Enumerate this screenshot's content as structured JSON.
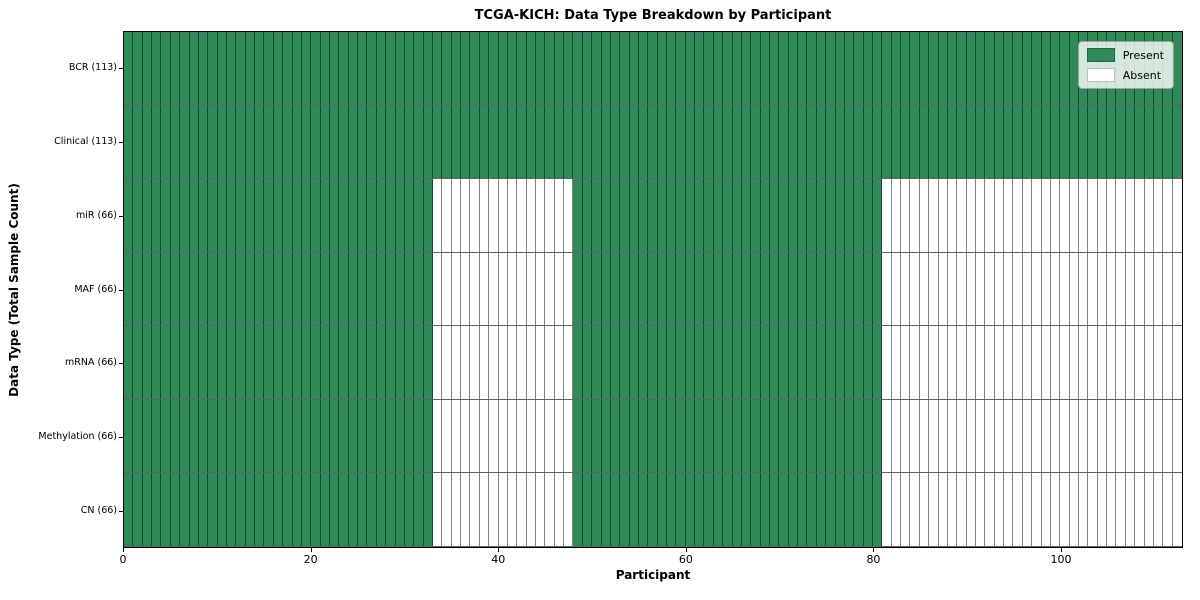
{
  "chart_data": {
    "type": "heatmap",
    "title": "TCGA-KICH: Data Type Breakdown by Participant",
    "xlabel": "Participant",
    "ylabel": "Data Type (Total Sample Count)",
    "n_participants": 113,
    "xlim": [
      0,
      113
    ],
    "x_ticks": [
      0,
      20,
      40,
      60,
      80,
      100
    ],
    "grid": false,
    "legend_position": "upper right",
    "legend": [
      {
        "label": "Present",
        "color": "#2e8b57"
      },
      {
        "label": "Absent",
        "color": "#ffffff"
      }
    ],
    "colors": {
      "present": "#2e8b57",
      "absent": "#ffffff",
      "cell_edge": "rgba(0,0,0,0.48)"
    },
    "rows": [
      {
        "label": "BCR (113)",
        "data_type": "BCR",
        "total_samples": 113,
        "present_ranges": [
          [
            0,
            112
          ]
        ]
      },
      {
        "label": "Clinical (113)",
        "data_type": "Clinical",
        "total_samples": 113,
        "present_ranges": [
          [
            0,
            112
          ]
        ]
      },
      {
        "label": "miR (66)",
        "data_type": "miR",
        "total_samples": 66,
        "present_ranges": [
          [
            0,
            32
          ],
          [
            48,
            80
          ]
        ]
      },
      {
        "label": "MAF (66)",
        "data_type": "MAF",
        "total_samples": 66,
        "present_ranges": [
          [
            0,
            32
          ],
          [
            48,
            80
          ]
        ]
      },
      {
        "label": "mRNA (66)",
        "data_type": "mRNA",
        "total_samples": 66,
        "present_ranges": [
          [
            0,
            32
          ],
          [
            48,
            80
          ]
        ]
      },
      {
        "label": "Methylation (66)",
        "data_type": "Methylation",
        "total_samples": 66,
        "present_ranges": [
          [
            0,
            32
          ],
          [
            48,
            80
          ]
        ]
      },
      {
        "label": "CN (66)",
        "data_type": "CN",
        "total_samples": 66,
        "present_ranges": [
          [
            0,
            32
          ],
          [
            48,
            80
          ]
        ]
      }
    ]
  }
}
